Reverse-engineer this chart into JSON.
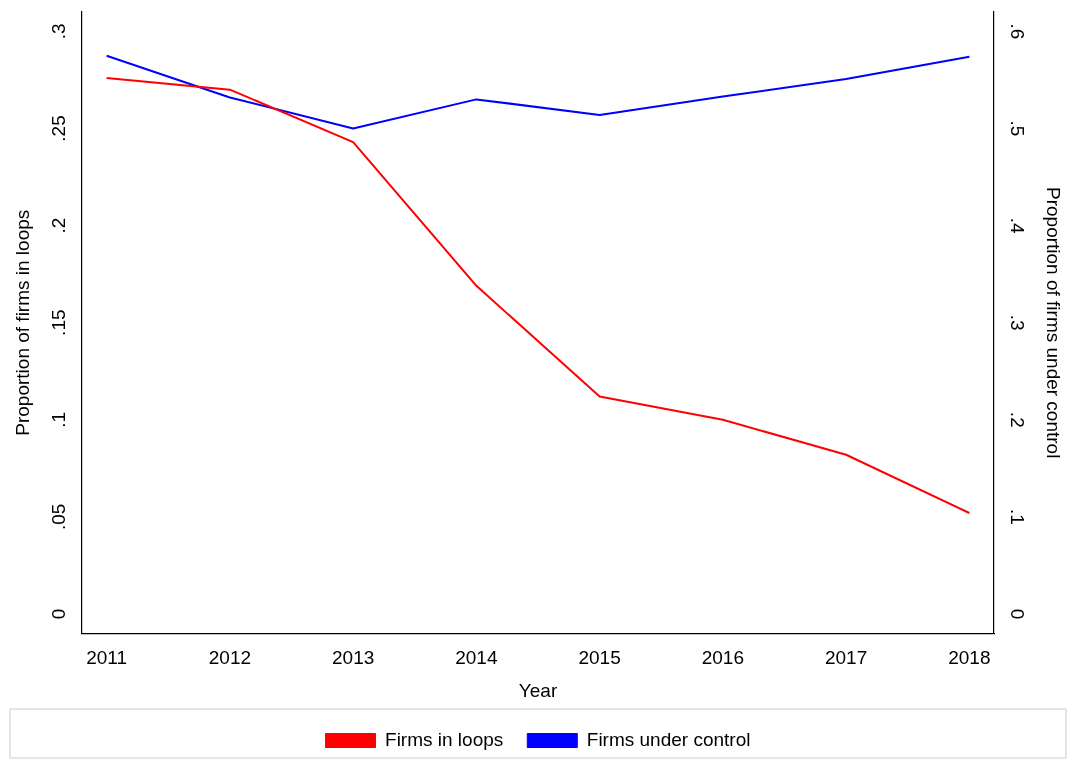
{
  "chart_data": {
    "type": "line",
    "xlabel": "Year",
    "ylabel": "Proportion of firms in loops",
    "y2label": "Proportion of firms under control",
    "x": [
      2011,
      2012,
      2013,
      2014,
      2015,
      2016,
      2017,
      2018
    ],
    "xlim": [
      2010.8,
      2018.2
    ],
    "xticks": [
      2011,
      2012,
      2013,
      2014,
      2015,
      2016,
      2017,
      2018
    ],
    "ylim": [
      -0.01,
      0.31
    ],
    "yticks": [
      0,
      {
        "value": 0.05,
        "label": ".05"
      },
      {
        "value": 0.1,
        "label": ".1"
      },
      {
        "value": 0.15,
        "label": ".15"
      },
      {
        "value": 0.2,
        "label": ".2"
      },
      {
        "value": 0.25,
        "label": ".25"
      },
      {
        "value": 0.3,
        "label": ".3"
      }
    ],
    "y2lim": [
      -0.02,
      0.62
    ],
    "y2ticks": [
      0,
      {
        "value": 0.1,
        "label": ".1"
      },
      {
        "value": 0.2,
        "label": ".2"
      },
      {
        "value": 0.3,
        "label": ".3"
      },
      {
        "value": 0.4,
        "label": ".4"
      },
      {
        "value": 0.5,
        "label": ".5"
      },
      {
        "value": 0.6,
        "label": ".6"
      }
    ],
    "series": [
      {
        "name": "Firms in loops",
        "color": "#ff0000",
        "values": [
          0.276,
          0.27,
          0.243,
          0.169,
          0.112,
          0.1,
          0.082,
          0.052
        ]
      },
      {
        "name": "Firms under control",
        "color": "#0000ff",
        "axis": "y2",
        "values": [
          0.575,
          0.532,
          0.5,
          0.53,
          0.514,
          0.533,
          0.551,
          0.574
        ]
      }
    ],
    "grid": false,
    "legend": "bottom",
    "marker": "none",
    "line_style": "solid"
  }
}
